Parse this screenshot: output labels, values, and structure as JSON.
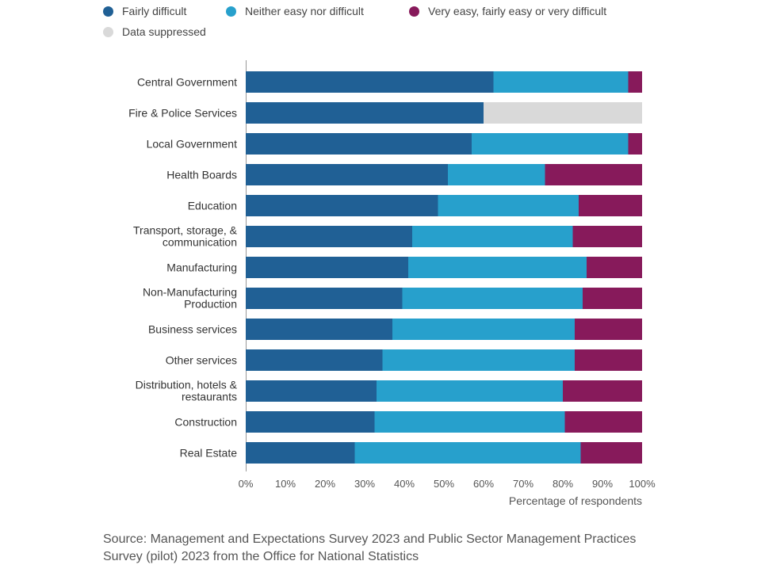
{
  "legend": {
    "items": [
      {
        "label": "Fairly difficult",
        "color": "#206095"
      },
      {
        "label": "Neither easy nor difficult",
        "color": "#27a0cc"
      },
      {
        "label": "Very easy, fairly easy or very difficult",
        "color": "#871a5b"
      },
      {
        "label": "Data suppressed",
        "color": "#d9d9d9"
      }
    ]
  },
  "chart_data": {
    "type": "bar",
    "orientation": "horizontal",
    "stacked": true,
    "categories": [
      [
        "Central Government"
      ],
      [
        "Fire & Police Services"
      ],
      [
        "Local Government"
      ],
      [
        "Health Boards"
      ],
      [
        "Education"
      ],
      [
        "Transport, storage, &",
        "communication"
      ],
      [
        "Manufacturing"
      ],
      [
        "Non-Manufacturing",
        "Production"
      ],
      [
        "Business services"
      ],
      [
        "Other services"
      ],
      [
        "Distribution, hotels &",
        "restaurants"
      ],
      [
        "Construction"
      ],
      [
        "Real Estate"
      ]
    ],
    "series": [
      {
        "name": "Fairly difficult",
        "color": "#206095",
        "values": [
          62.5,
          60,
          57,
          51,
          48.5,
          42,
          41,
          39.5,
          37,
          34.5,
          33,
          32.5,
          27.5
        ]
      },
      {
        "name": "Neither easy nor difficult",
        "color": "#27a0cc",
        "values": [
          34,
          0,
          39.5,
          24.5,
          35.5,
          40.5,
          45,
          45.5,
          46,
          48.5,
          47,
          48,
          57
        ]
      },
      {
        "name": "Very easy, fairly easy or very difficult",
        "color": "#871a5b",
        "values": [
          3.5,
          0,
          3.5,
          24.5,
          16,
          17.5,
          14,
          15,
          17,
          17,
          20,
          19.5,
          15.5
        ]
      },
      {
        "name": "Data suppressed",
        "color": "#d9d9d9",
        "values": [
          0,
          40,
          0,
          0,
          0,
          0,
          0,
          0,
          0,
          0,
          0,
          0,
          0
        ]
      }
    ],
    "xlim": [
      0,
      100
    ],
    "xticks": [
      "0%",
      "10%",
      "20%",
      "30%",
      "40%",
      "50%",
      "60%",
      "70%",
      "80%",
      "90%",
      "100%"
    ],
    "xlabel": "Percentage of respondents",
    "legend_position": "top"
  },
  "source": {
    "text": "Source: Management and Expectations Survey 2023 and Public Sector Management Practices Survey (pilot) 2023 from the Office for National Statistics"
  }
}
